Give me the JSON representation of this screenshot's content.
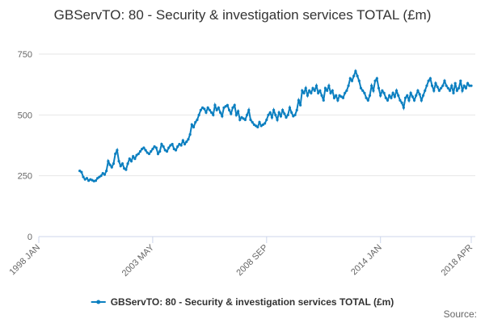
{
  "chart_data": {
    "type": "line",
    "title": "GBServTO: 80 - Security & investigation services TOTAL (£m)",
    "source": "Source:",
    "x": [
      "1999-12",
      "2000-01",
      "2000-02",
      "2000-03",
      "2000-04",
      "2000-05",
      "2000-06",
      "2000-07",
      "2000-08",
      "2000-09",
      "2000-10",
      "2000-11",
      "2000-12",
      "2001-01",
      "2001-02",
      "2001-03",
      "2001-04",
      "2001-05",
      "2001-06",
      "2001-07",
      "2001-08",
      "2001-09",
      "2001-10",
      "2001-11",
      "2001-12",
      "2002-01",
      "2002-02",
      "2002-03",
      "2002-04",
      "2002-05",
      "2002-06",
      "2002-07",
      "2002-08",
      "2002-09",
      "2002-10",
      "2002-11",
      "2002-12",
      "2003-01",
      "2003-02",
      "2003-03",
      "2003-04",
      "2003-05",
      "2003-06",
      "2003-07",
      "2003-08",
      "2003-09",
      "2003-10",
      "2003-11",
      "2003-12",
      "2004-01",
      "2004-02",
      "2004-03",
      "2004-04",
      "2004-05",
      "2004-06",
      "2004-07",
      "2004-08",
      "2004-09",
      "2004-10",
      "2004-11",
      "2004-12",
      "2005-01",
      "2005-02",
      "2005-03",
      "2005-04",
      "2005-05",
      "2005-06",
      "2005-07",
      "2005-08",
      "2005-09",
      "2005-10",
      "2005-11",
      "2005-12",
      "2006-01",
      "2006-02",
      "2006-03",
      "2006-04",
      "2006-05",
      "2006-06",
      "2006-07",
      "2006-08",
      "2006-09",
      "2006-10",
      "2006-11",
      "2006-12",
      "2007-01",
      "2007-02",
      "2007-03",
      "2007-04",
      "2007-05",
      "2007-06",
      "2007-07",
      "2007-08",
      "2007-09",
      "2007-10",
      "2007-11",
      "2007-12",
      "2008-01",
      "2008-02",
      "2008-03",
      "2008-04",
      "2008-05",
      "2008-06",
      "2008-07",
      "2008-08",
      "2008-09",
      "2008-10",
      "2008-11",
      "2008-12",
      "2009-01",
      "2009-02",
      "2009-03",
      "2009-04",
      "2009-05",
      "2009-06",
      "2009-07",
      "2009-08",
      "2009-09",
      "2009-10",
      "2009-11",
      "2009-12",
      "2010-01",
      "2010-02",
      "2010-03",
      "2010-04",
      "2010-05",
      "2010-06",
      "2010-07",
      "2010-08",
      "2010-09",
      "2010-10",
      "2010-11",
      "2010-12",
      "2011-01",
      "2011-02",
      "2011-03",
      "2011-04",
      "2011-05",
      "2011-06",
      "2011-07",
      "2011-08",
      "2011-09",
      "2011-10",
      "2011-11",
      "2011-12",
      "2012-01",
      "2012-02",
      "2012-03",
      "2012-04",
      "2012-05",
      "2012-06",
      "2012-07",
      "2012-08",
      "2012-09",
      "2012-10",
      "2012-11",
      "2012-12",
      "2013-01",
      "2013-02",
      "2013-03",
      "2013-04",
      "2013-05",
      "2013-06",
      "2013-07",
      "2013-08",
      "2013-09",
      "2013-10",
      "2013-11",
      "2013-12",
      "2014-01",
      "2014-02",
      "2014-03",
      "2014-04",
      "2014-05",
      "2014-06",
      "2014-07",
      "2014-08",
      "2014-09",
      "2014-10",
      "2014-11",
      "2014-12",
      "2015-01",
      "2015-02",
      "2015-03",
      "2015-04",
      "2015-05",
      "2015-06",
      "2015-07",
      "2015-08",
      "2015-09",
      "2015-10",
      "2015-11",
      "2015-12",
      "2016-01",
      "2016-02",
      "2016-03",
      "2016-04",
      "2016-05",
      "2016-06",
      "2016-07",
      "2016-08",
      "2016-09",
      "2016-10",
      "2016-11",
      "2016-12",
      "2017-01",
      "2017-02",
      "2017-03",
      "2017-04",
      "2017-05",
      "2017-06",
      "2017-07",
      "2017-08",
      "2017-09",
      "2017-10",
      "2017-11",
      "2017-12",
      "2018-01",
      "2018-02",
      "2018-03",
      "2018-04"
    ],
    "series": [
      {
        "name": "GBServTO: 80 - Security & investigation services TOTAL (£m)",
        "color": "#0b7fc0",
        "values": [
          270,
          265,
          245,
          235,
          240,
          230,
          235,
          232,
          228,
          230,
          240,
          245,
          250,
          260,
          255,
          270,
          310,
          295,
          285,
          300,
          340,
          355,
          310,
          290,
          300,
          280,
          275,
          300,
          320,
          310,
          330,
          320,
          335,
          340,
          350,
          360,
          365,
          355,
          345,
          340,
          350,
          360,
          370,
          365,
          340,
          350,
          380,
          370,
          355,
          350,
          365,
          375,
          380,
          360,
          355,
          370,
          380,
          375,
          395,
          380,
          390,
          400,
          420,
          460,
          450,
          470,
          480,
          500,
          520,
          530,
          525,
          510,
          530,
          520,
          510,
          500,
          540,
          520,
          530,
          510,
          495,
          530,
          535,
          540,
          520,
          505,
          530,
          540,
          500,
          515,
          480,
          490,
          485,
          480,
          500,
          520,
          480,
          470,
          460,
          455,
          450,
          470,
          455,
          460,
          465,
          480,
          500,
          510,
          490,
          520,
          500,
          480,
          510,
          495,
          520,
          505,
          490,
          500,
          530,
          510,
          495,
          500,
          520,
          560,
          540,
          600,
          590,
          610,
          580,
          600,
          590,
          610,
          600,
          620,
          590,
          600,
          580,
          560,
          610,
          600,
          620,
          590,
          600,
          570,
          580,
          560,
          580,
          575,
          570,
          590,
          600,
          620,
          650,
          640,
          660,
          680,
          660,
          640,
          610,
          600,
          590,
          570,
          560,
          580,
          620,
          600,
          640,
          650,
          610,
          580,
          600,
          590,
          570,
          560,
          580,
          570,
          590,
          575,
          600,
          580,
          560,
          550,
          530,
          570,
          580,
          560,
          590,
          575,
          560,
          580,
          600,
          585,
          560,
          580,
          600,
          620,
          640,
          650,
          620,
          600,
          630,
          615,
          600,
          610,
          620,
          640,
          620,
          610,
          600,
          620,
          590,
          630,
          600,
          610,
          640,
          600,
          620,
          610,
          630,
          620,
          620
        ]
      }
    ],
    "xlim": [
      "1998-01",
      "2018-04"
    ],
    "xticks": [
      {
        "value": "1998-01",
        "label": "1998 JAN"
      },
      {
        "value": "2003-05",
        "label": "2003 MAY"
      },
      {
        "value": "2008-09",
        "label": "2008 SEP"
      },
      {
        "value": "2014-01",
        "label": "2014 JAN"
      },
      {
        "value": "2018-04",
        "label": "2018 APR"
      }
    ],
    "ylim": [
      0,
      750
    ],
    "yticks": [
      0,
      250,
      500,
      750
    ],
    "grid": true,
    "legend": "bottom"
  }
}
